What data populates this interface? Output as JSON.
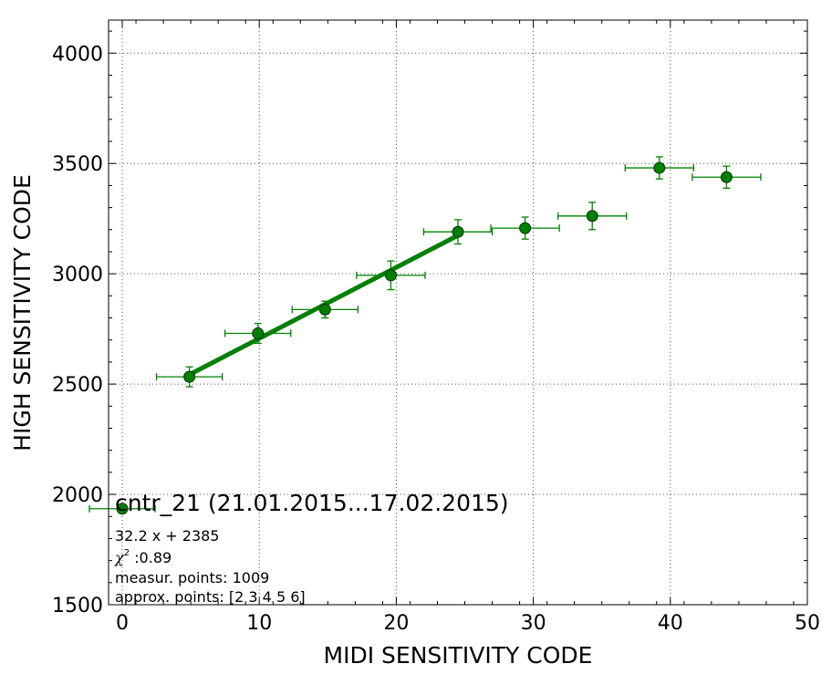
{
  "chart_data": {
    "type": "scatter",
    "xlabel": "MIDI SENSITIVITY CODE",
    "ylabel": "HIGH SENSITIVITY CODE",
    "xlim": [
      -1,
      50
    ],
    "ylim": [
      1500,
      4150
    ],
    "xticks": [
      0,
      10,
      20,
      30,
      40,
      50
    ],
    "yticks": [
      1500,
      2000,
      2500,
      3000,
      3500,
      4000
    ],
    "grid": true,
    "colors": {
      "series": "#008000",
      "marker_edge": "#003300",
      "fit_line": "#008000"
    },
    "series": [
      {
        "points": [
          {
            "x": 0.0,
            "y": 1935,
            "xerr": 2.4,
            "yerr": 0
          },
          {
            "x": 4.9,
            "y": 2533,
            "xerr": 2.4,
            "yerr": 45
          },
          {
            "x": 9.9,
            "y": 2730,
            "xerr": 2.4,
            "yerr": 45
          },
          {
            "x": 14.8,
            "y": 2838,
            "xerr": 2.4,
            "yerr": 38
          },
          {
            "x": 19.6,
            "y": 2993,
            "xerr": 2.5,
            "yerr": 65
          },
          {
            "x": 24.5,
            "y": 3190,
            "xerr": 2.5,
            "yerr": 55
          },
          {
            "x": 29.4,
            "y": 3207,
            "xerr": 2.5,
            "yerr": 50
          },
          {
            "x": 34.3,
            "y": 3262,
            "xerr": 2.5,
            "yerr": 62
          },
          {
            "x": 39.2,
            "y": 3480,
            "xerr": 2.5,
            "yerr": 50
          },
          {
            "x": 44.1,
            "y": 3438,
            "xerr": 2.5,
            "yerr": 50
          }
        ]
      }
    ],
    "fit": {
      "slope": 32.2,
      "intercept": 2385,
      "x_range": [
        4.9,
        24.5
      ]
    },
    "annotations": {
      "title": "cntr_21 (21.01.2015...17.02.2015)",
      "equation": "32.2 x + 2385",
      "chi_symbol": "χ",
      "chi_exp": "2",
      "chi_value": " :0.89",
      "measur_points": "measur. points: 1009",
      "approx_points": "approx. points: [2 3 4 5 6]"
    }
  }
}
